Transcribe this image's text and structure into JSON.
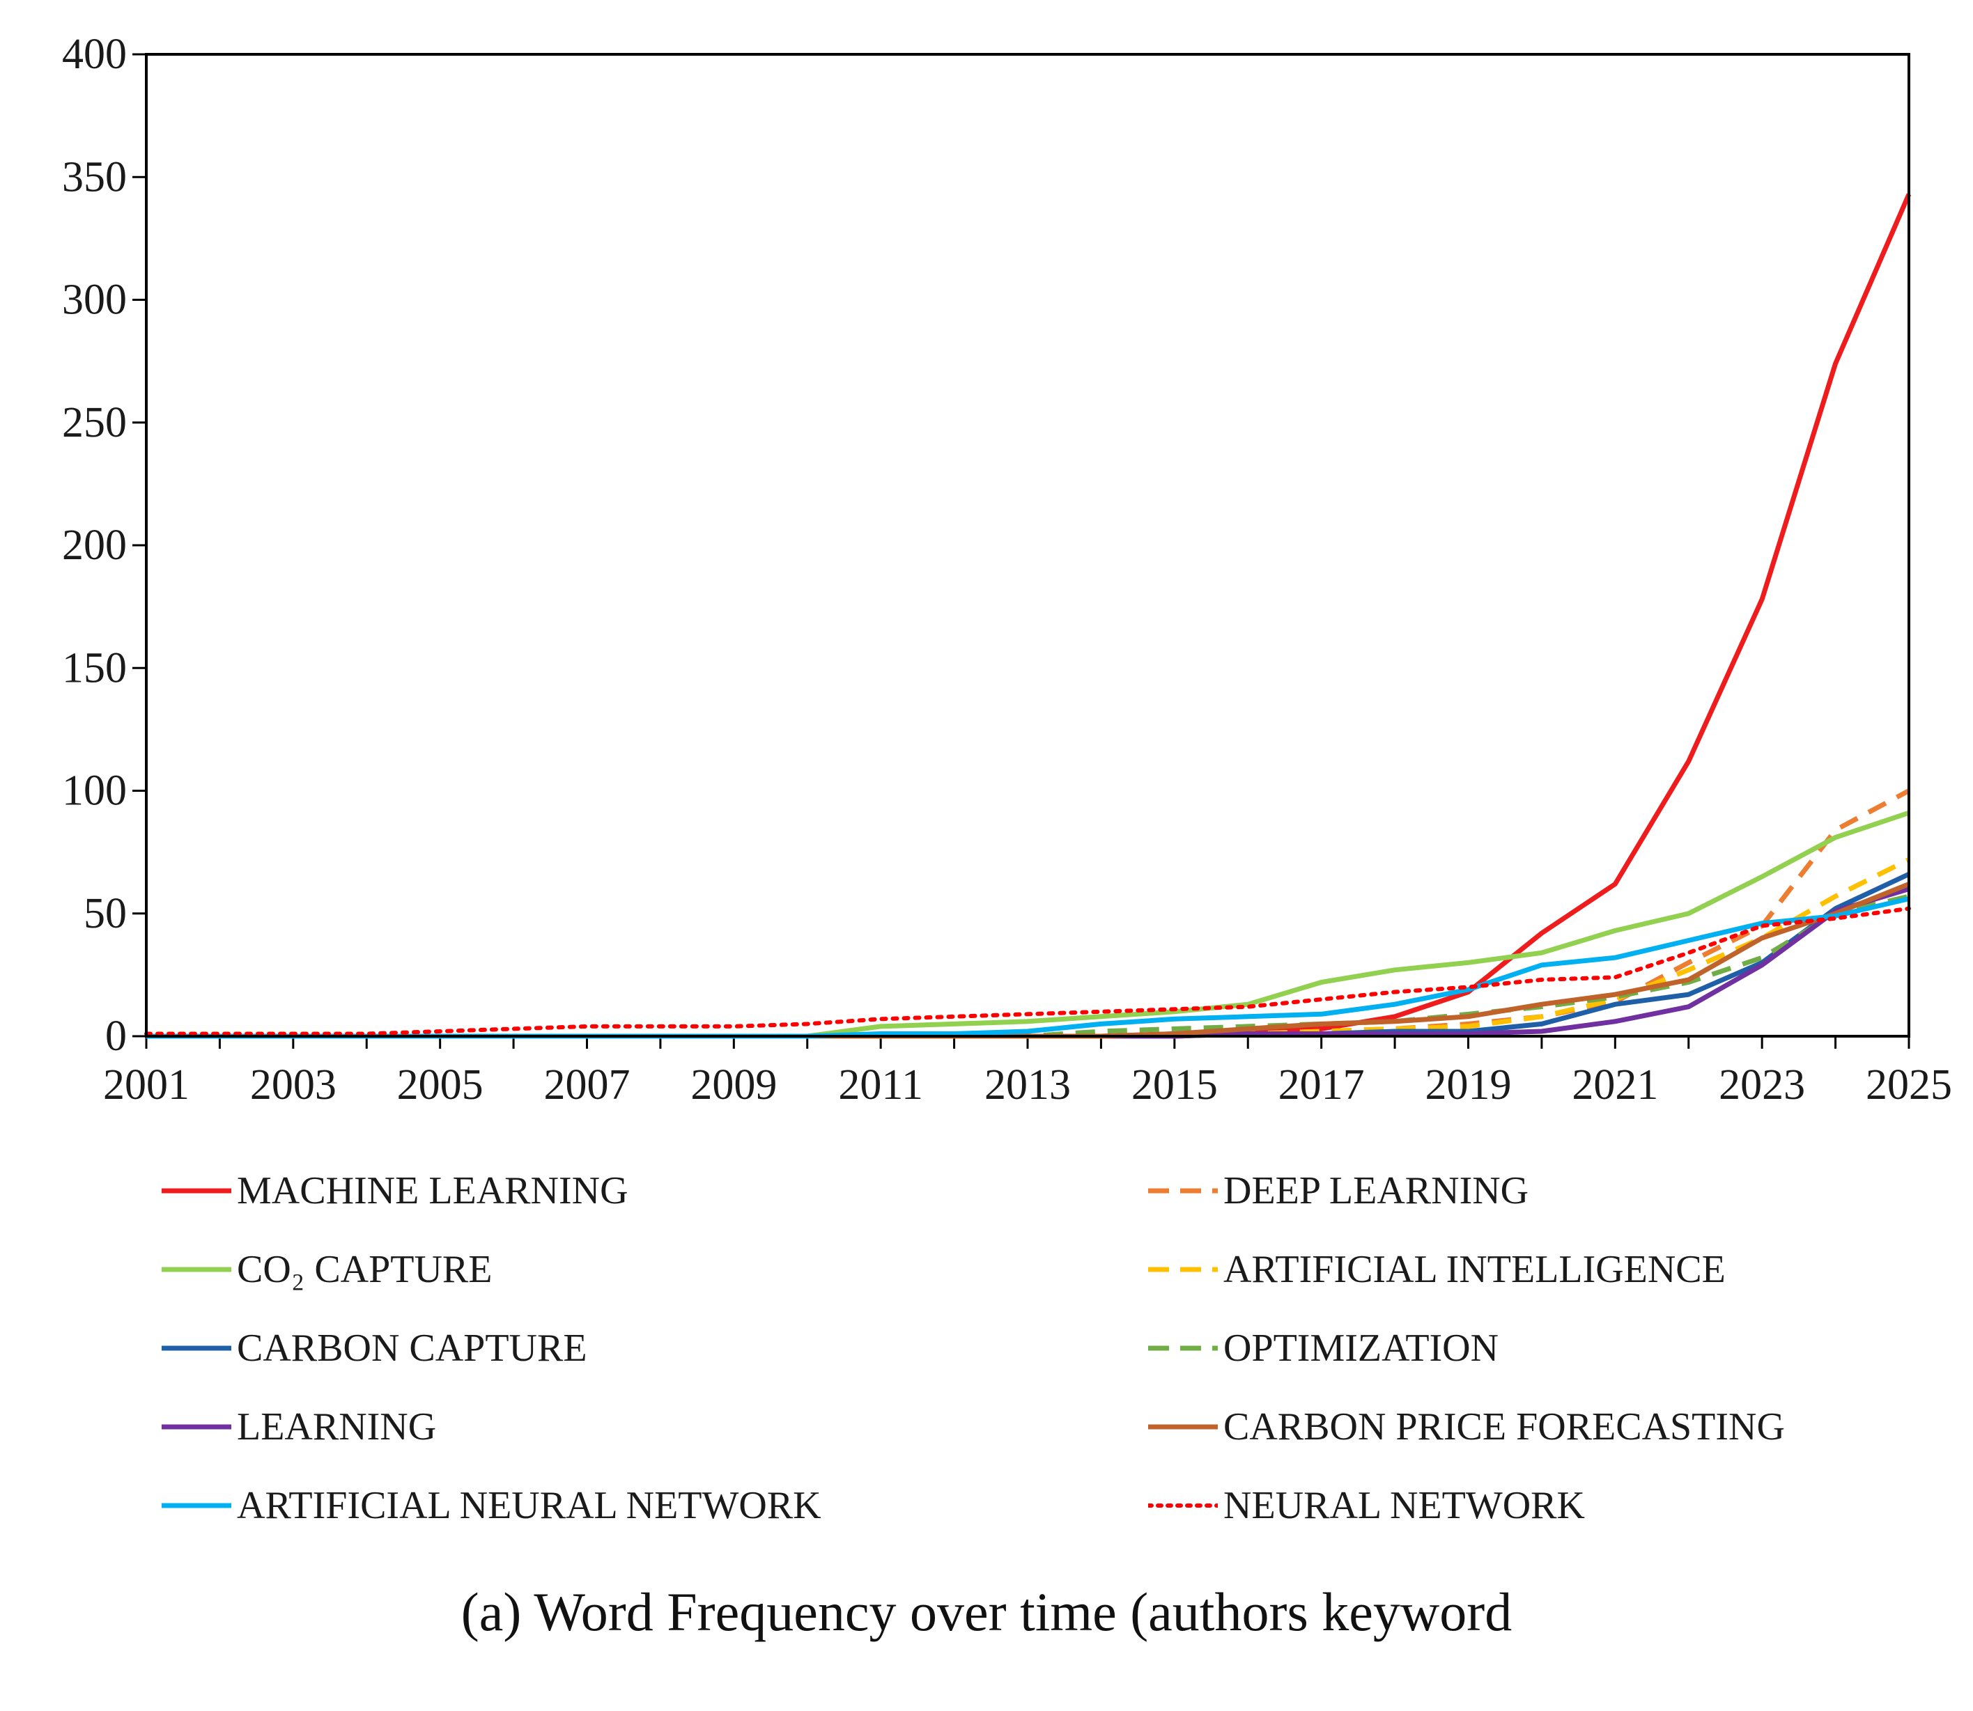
{
  "caption": "(a) Word Frequency over time (authors keyword",
  "chart_data": {
    "type": "line",
    "title": "",
    "xlabel": "",
    "ylabel": "",
    "xlim": [
      2001,
      2025
    ],
    "ylim": [
      0,
      400
    ],
    "yticks": [
      0,
      50,
      100,
      150,
      200,
      250,
      300,
      350,
      400
    ],
    "xticks": [
      2001,
      2003,
      2005,
      2007,
      2009,
      2011,
      2013,
      2015,
      2017,
      2019,
      2021,
      2023,
      2025
    ],
    "x": [
      2001,
      2002,
      2003,
      2004,
      2005,
      2006,
      2007,
      2008,
      2009,
      2010,
      2011,
      2012,
      2013,
      2014,
      2015,
      2016,
      2017,
      2018,
      2019,
      2020,
      2021,
      2022,
      2023,
      2024,
      2025
    ],
    "legend_position": "bottom",
    "series": [
      {
        "name": "MACHINE LEARNING",
        "color": "#ee1c1c",
        "dash": "solid",
        "values": [
          0,
          0,
          0,
          0,
          0,
          0,
          0,
          0,
          0,
          0,
          0,
          0,
          0,
          0,
          1,
          2,
          3,
          8,
          18,
          42,
          62,
          112,
          178,
          274,
          343
        ]
      },
      {
        "name": "DEEP LEARNING",
        "color": "#ed7d31",
        "dash": "dashed",
        "values": [
          0,
          0,
          0,
          0,
          0,
          0,
          0,
          0,
          0,
          0,
          0,
          0,
          0,
          0,
          0,
          1,
          2,
          3,
          5,
          8,
          14,
          30,
          45,
          84,
          100
        ]
      },
      {
        "name": "CO₂ CAPTURE",
        "color": "#92d050",
        "dash": "solid",
        "values": [
          0,
          0,
          0,
          0,
          0,
          0,
          0,
          0,
          0,
          0,
          4,
          5,
          6,
          8,
          10,
          13,
          22,
          27,
          30,
          34,
          43,
          50,
          65,
          81,
          91
        ]
      },
      {
        "name": "ARTIFICIAL INTELLIGENCE",
        "color": "#ffc000",
        "dash": "dashed",
        "values": [
          0,
          0,
          0,
          0,
          0,
          0,
          0,
          0,
          0,
          0,
          0,
          0,
          0,
          0,
          0,
          1,
          2,
          3,
          4,
          8,
          15,
          27,
          40,
          57,
          72
        ]
      },
      {
        "name": "CARBON CAPTURE",
        "color": "#1f5fa8",
        "dash": "solid",
        "values": [
          0,
          0,
          0,
          0,
          0,
          0,
          0,
          0,
          0,
          0,
          0,
          0,
          0,
          0,
          0,
          1,
          1,
          2,
          2,
          5,
          13,
          17,
          30,
          52,
          66
        ]
      },
      {
        "name": "OPTIMIZATION",
        "color": "#70ad47",
        "dash": "dashed",
        "values": [
          0,
          0,
          0,
          0,
          0,
          0,
          0,
          0,
          0,
          0,
          0,
          0,
          0,
          2,
          3,
          4,
          5,
          6,
          9,
          12,
          16,
          22,
          32,
          50,
          57
        ]
      },
      {
        "name": "LEARNING",
        "color": "#7030a0",
        "dash": "solid",
        "values": [
          0,
          0,
          0,
          0,
          0,
          0,
          0,
          0,
          0,
          0,
          0,
          0,
          0,
          0,
          0,
          1,
          1,
          1,
          1,
          2,
          6,
          12,
          29,
          51,
          60
        ]
      },
      {
        "name": "CARBON PRICE FORECASTING",
        "color": "#c0632b",
        "dash": "solid",
        "values": [
          0,
          0,
          0,
          0,
          0,
          0,
          0,
          0,
          0,
          0,
          0,
          0,
          0,
          0,
          1,
          3,
          5,
          6,
          8,
          13,
          17,
          23,
          40,
          50,
          62
        ]
      },
      {
        "name": "ARTIFICIAL NEURAL NETWORK",
        "color": "#00b0f0",
        "dash": "solid",
        "values": [
          0,
          0,
          0,
          0,
          0,
          0,
          0,
          0,
          0,
          0,
          1,
          1,
          2,
          5,
          7,
          8,
          9,
          13,
          19,
          29,
          32,
          39,
          46,
          49,
          56
        ]
      },
      {
        "name": "NEURAL NETWORK",
        "color": "#ff0000",
        "dash": "dotted",
        "values": [
          1,
          1,
          1,
          1,
          2,
          3,
          4,
          4,
          4,
          5,
          7,
          8,
          9,
          10,
          11,
          12,
          15,
          18,
          20,
          23,
          24,
          34,
          45,
          48,
          52
        ]
      }
    ]
  }
}
